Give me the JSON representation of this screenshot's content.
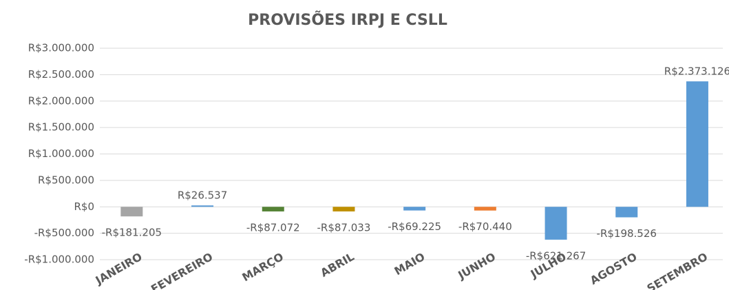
{
  "chart_data": {
    "type": "bar",
    "title": "PROVISÕES IRPJ E CSLL",
    "categories": [
      "JANEIRO",
      "FEVEREIRO",
      "MARÇO",
      "ABRIL",
      "MAIO",
      "JUNHO",
      "JULHO",
      "AGOSTO",
      "SETEMBRO"
    ],
    "values": [
      -181205,
      26537,
      -87072,
      -87033,
      -69225,
      -70440,
      -621267,
      -198526,
      2373126
    ],
    "value_labels": [
      "-R$181.205",
      "R$26.537",
      "-R$87.072",
      "-R$87.033",
      "-R$69.225",
      "-R$70.440",
      "-R$621.267",
      "-R$198.526",
      "R$2.373.126"
    ],
    "colors": [
      "#a5a5a5",
      "#5b9bd5",
      "#548235",
      "#bf9000",
      "#5b9bd5",
      "#ed7d31",
      "#5b9bd5",
      "#5b9bd5",
      "#5b9bd5"
    ],
    "ylim": [
      -1000000,
      3000000
    ],
    "yticks": [
      {
        "value": -1000000,
        "label": "-R$1.000.000"
      },
      {
        "value": -500000,
        "label": "-R$500.000"
      },
      {
        "value": 0,
        "label": "R$0"
      },
      {
        "value": 500000,
        "label": "R$500.000"
      },
      {
        "value": 1000000,
        "label": "R$1.000.000"
      },
      {
        "value": 1500000,
        "label": "R$1.500.000"
      },
      {
        "value": 2000000,
        "label": "R$2.000.000"
      },
      {
        "value": 2500000,
        "label": "R$2.500.000"
      },
      {
        "value": 3000000,
        "label": "R$3.000.000"
      }
    ],
    "grid": true
  }
}
